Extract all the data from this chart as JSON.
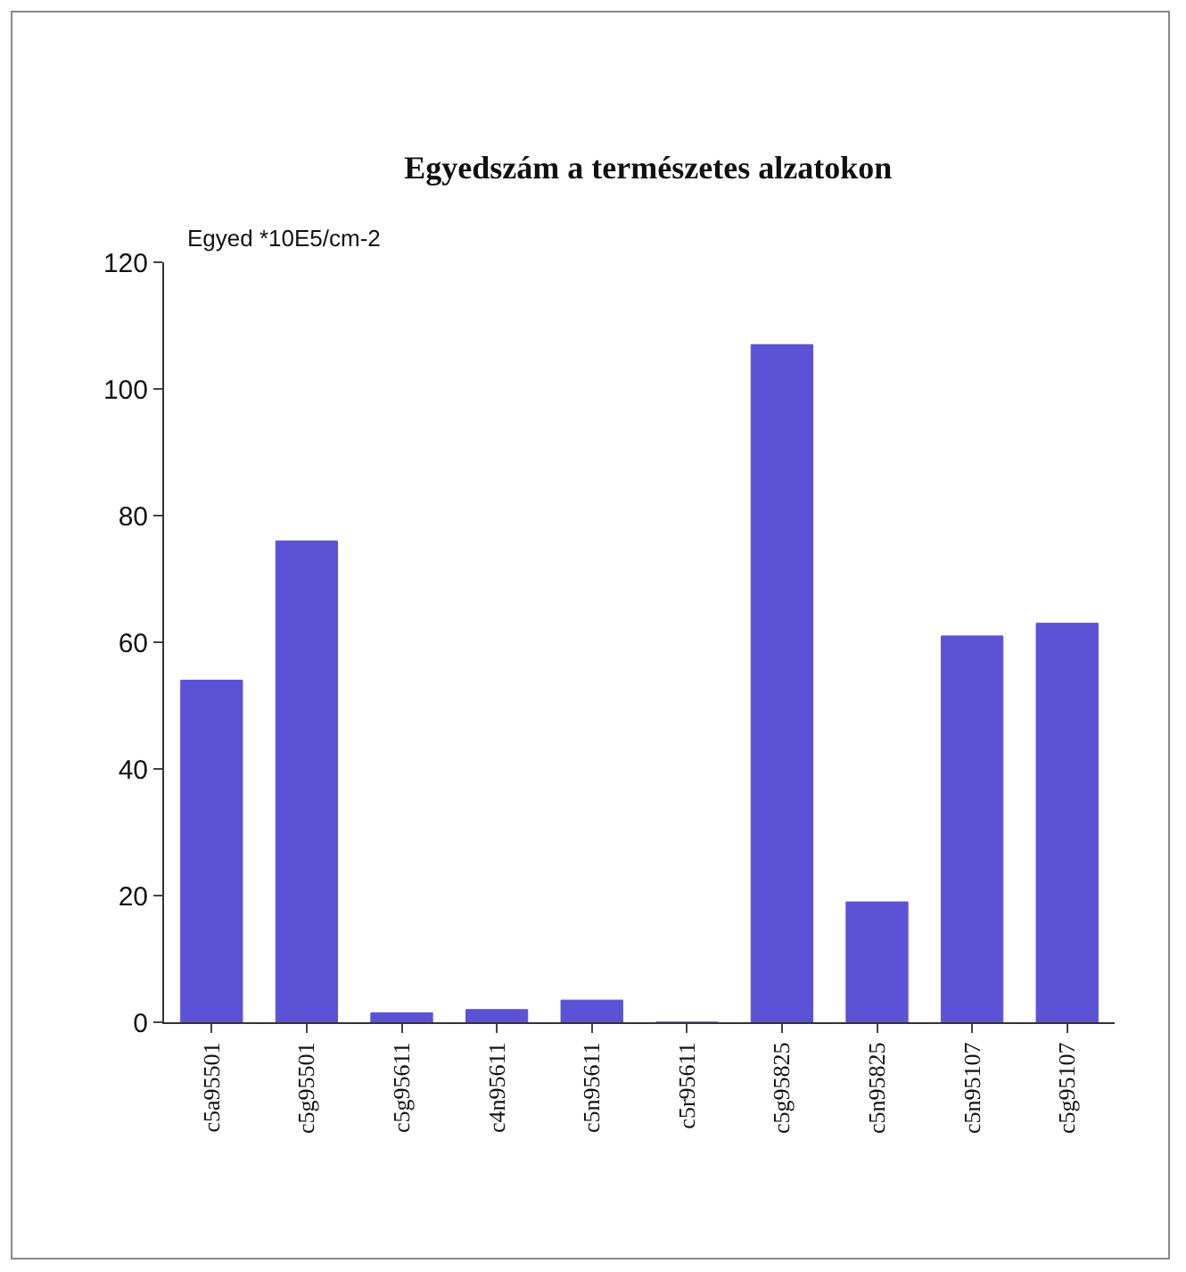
{
  "chart_data": {
    "type": "bar",
    "title": "Egyedszám a természetes alzatokon",
    "ylabel": "Egyed *10E5/cm-2",
    "categories": [
      "c5a95501",
      "c5g95501",
      "c5g95611",
      "c4n95611",
      "c5n95611",
      "c5r95611",
      "c5g95825",
      "c5n95825",
      "c5n95107",
      "c5g95107"
    ],
    "values": [
      54,
      76,
      1.5,
      2,
      3.5,
      0,
      107,
      19,
      61,
      63
    ],
    "color": "#5b52d6",
    "ylim": [
      0,
      120
    ],
    "yticks": [
      0,
      20,
      40,
      60,
      80,
      100,
      120
    ]
  }
}
